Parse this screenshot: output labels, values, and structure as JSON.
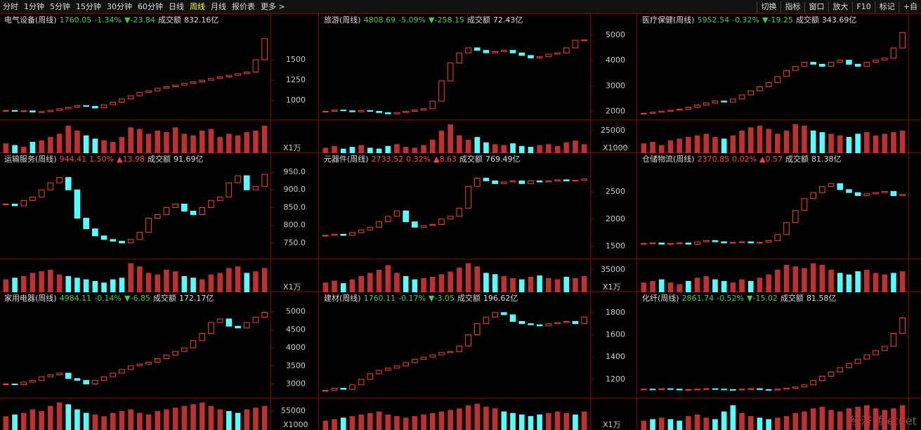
{
  "toolbar": {
    "left": [
      "分时",
      "1分钟",
      "5分钟",
      "15分钟",
      "30分钟",
      "60分钟",
      "日线",
      "周线",
      "月线",
      "报价表",
      "更多 >"
    ],
    "selected": "周线",
    "right": [
      "切换",
      "指标",
      "窗口",
      "放大",
      "F10",
      "标记",
      "+自"
    ]
  },
  "watermark": "经济通 etnet",
  "panels": [
    {
      "title": "电气设备(周线)",
      "price": "1760.05",
      "change": "-1.34%",
      "delta": "▼-23.84",
      "turnover_label": "成交额",
      "turnover": "832.16亿",
      "up": false,
      "ylim": [
        770,
        1870
      ],
      "yticks": [
        1000,
        1250,
        1500
      ],
      "vol_unit": "X1万",
      "vol_lim": [
        0,
        100
      ],
      "vol_ticks": [],
      "closes": [
        880,
        870,
        875,
        860,
        865,
        880,
        900,
        920,
        940,
        930,
        910,
        950,
        980,
        1020,
        1060,
        1100,
        1120,
        1150,
        1170,
        1190,
        1210,
        1230,
        1250,
        1270,
        1290,
        1310,
        1330,
        1350,
        1500,
        1760
      ],
      "volumes": [
        30,
        25,
        20,
        35,
        40,
        50,
        60,
        85,
        70,
        55,
        45,
        40,
        35,
        50,
        80,
        75,
        60,
        70,
        65,
        80,
        60,
        55,
        70,
        75,
        50,
        60,
        55,
        65,
        70,
        85
      ]
    },
    {
      "title": "旅游(周线)",
      "price": "4808.69",
      "change": "-5.09%",
      "delta": "▼-258.15",
      "turnover_label": "成交额",
      "turnover": "72.43亿",
      "up": false,
      "ylim": [
        1680,
        5220
      ],
      "yticks": [
        2000,
        3000,
        4000,
        5000
      ],
      "vol_unit": "X1000",
      "vol_lim": [
        0,
        36000
      ],
      "vol_ticks": [
        25000
      ],
      "closes": [
        2000,
        2050,
        2020,
        1980,
        2030,
        2000,
        1950,
        1900,
        1950,
        2000,
        2050,
        2100,
        2400,
        3200,
        3900,
        4300,
        4500,
        4400,
        4300,
        4350,
        4400,
        4300,
        4200,
        4100,
        4150,
        4250,
        4300,
        4500,
        4800,
        4809
      ],
      "volumes": [
        6000,
        8000,
        5000,
        7000,
        9000,
        6000,
        5000,
        8000,
        10000,
        7000,
        6000,
        9000,
        15000,
        25000,
        32000,
        20000,
        15000,
        18000,
        12000,
        10000,
        9000,
        11000,
        8000,
        7000,
        9000,
        10000,
        8000,
        12000,
        14000,
        10000
      ]
    },
    {
      "title": "医疗保健(周线)",
      "price": "5952.54",
      "change": "-0.32%",
      "delta": "▼-19.25",
      "turnover_label": "成交额",
      "turnover": "343.69亿",
      "up": false,
      "ylim": [
        1700,
        6100
      ],
      "yticks": [],
      "vol_unit": "",
      "vol_lim": [
        0,
        100
      ],
      "vol_ticks": [],
      "closes": [
        2000,
        2050,
        2100,
        2150,
        2200,
        2300,
        2400,
        2500,
        2600,
        2550,
        2700,
        2900,
        3100,
        3300,
        3500,
        3800,
        4100,
        4300,
        4500,
        4400,
        4300,
        4500,
        4600,
        4400,
        4300,
        4500,
        4600,
        4700,
        5200,
        5953
      ],
      "volumes": [
        30,
        35,
        25,
        40,
        45,
        50,
        55,
        60,
        50,
        45,
        55,
        70,
        80,
        85,
        75,
        60,
        70,
        90,
        85,
        70,
        65,
        60,
        55,
        50,
        60,
        65,
        55,
        60,
        65,
        70
      ]
    },
    {
      "title": "运输服务(周线)",
      "price": "944.41",
      "change": "1.50%",
      "delta": "▲13.98",
      "turnover_label": "成交额",
      "turnover": "91.69亿",
      "up": true,
      "ylim": [
        706,
        960
      ],
      "yticks": [
        {
          "value": 750,
          "label": "750.0"
        },
        {
          "value": 800,
          "label": "800.0"
        },
        {
          "value": 850,
          "label": "850.0"
        },
        {
          "value": 900,
          "label": "900.0"
        },
        {
          "value": 950,
          "label": "950.0"
        }
      ],
      "vol_unit": "X1万",
      "vol_lim": [
        0,
        100
      ],
      "vol_ticks": [],
      "closes": [
        860,
        855,
        870,
        880,
        900,
        920,
        935,
        900,
        820,
        790,
        770,
        760,
        755,
        750,
        760,
        780,
        820,
        830,
        850,
        860,
        840,
        830,
        850,
        870,
        880,
        920,
        940,
        900,
        910,
        944
      ],
      "volumes": [
        40,
        45,
        50,
        60,
        65,
        70,
        55,
        50,
        45,
        40,
        35,
        30,
        40,
        45,
        90,
        80,
        60,
        55,
        70,
        65,
        50,
        45,
        40,
        55,
        60,
        75,
        80,
        60,
        65,
        75
      ]
    },
    {
      "title": "元器件(周线)",
      "price": "2733.52",
      "change": "0.32%",
      "delta": "▲8.63",
      "turnover_label": "成交额",
      "turnover": "769.49亿",
      "up": true,
      "ylim": [
        1275,
        2925
      ],
      "yticks": [
        1500,
        2000,
        2500
      ],
      "vol_unit": "X1万",
      "vol_lim": [
        0,
        50000
      ],
      "vol_ticks": [
        35000
      ],
      "closes": [
        1700,
        1720,
        1700,
        1750,
        1800,
        1850,
        1950,
        2050,
        2150,
        1950,
        1850,
        1880,
        1900,
        2000,
        2050,
        2200,
        2600,
        2750,
        2700,
        2650,
        2680,
        2700,
        2650,
        2700,
        2680,
        2700,
        2720,
        2700,
        2710,
        2734
      ],
      "volumes": [
        15000,
        18000,
        14000,
        20000,
        25000,
        30000,
        35000,
        42000,
        30000,
        25000,
        20000,
        22000,
        24000,
        28000,
        32000,
        38000,
        45000,
        40000,
        30000,
        28000,
        25000,
        22000,
        20000,
        24000,
        26000,
        22000,
        20000,
        24000,
        22000,
        25000
      ]
    },
    {
      "title": "仓储物流(周线)",
      "price": "2370.85",
      "change": "0.02%",
      "delta": "▲0.57",
      "turnover_label": "成交额",
      "turnover": "81.38亿",
      "up": true,
      "ylim": [
        1300,
        2800
      ],
      "yticks": [],
      "vol_unit": "",
      "vol_lim": [
        0,
        100
      ],
      "vol_ticks": [],
      "closes": [
        1550,
        1560,
        1540,
        1550,
        1560,
        1540,
        1580,
        1600,
        1580,
        1560,
        1570,
        1580,
        1560,
        1570,
        1600,
        1700,
        1900,
        2100,
        2300,
        2400,
        2500,
        2550,
        2450,
        2400,
        2350,
        2380,
        2400,
        2420,
        2350,
        2371
      ],
      "volumes": [
        30,
        35,
        40,
        30,
        25,
        35,
        45,
        50,
        40,
        35,
        30,
        40,
        35,
        45,
        55,
        70,
        85,
        80,
        75,
        90,
        85,
        70,
        60,
        55,
        65,
        70,
        60,
        55,
        60,
        65
      ]
    },
    {
      "title": "家用电器(周线)",
      "price": "4984.11",
      "change": "-0.14%",
      "delta": "▼-6.85",
      "turnover_label": "成交额",
      "turnover": "172.17亿",
      "up": false,
      "ylim": [
        2620,
        5110
      ],
      "yticks": [
        3000,
        3500,
        4000,
        4500,
        5000
      ],
      "vol_unit": "X1000",
      "vol_lim": [
        0,
        90000
      ],
      "vol_ticks": [
        55000
      ],
      "closes": [
        3000,
        2980,
        3050,
        3100,
        3200,
        3250,
        3300,
        3150,
        3100,
        3000,
        3100,
        3200,
        3300,
        3400,
        3500,
        3550,
        3600,
        3700,
        3800,
        3900,
        4000,
        4200,
        4400,
        4700,
        4800,
        4600,
        4550,
        4700,
        4850,
        4984
      ],
      "volumes": [
        40000,
        45000,
        50000,
        60000,
        55000,
        70000,
        80000,
        75000,
        60000,
        50000,
        45000,
        40000,
        50000,
        55000,
        60000,
        50000,
        45000,
        55000,
        60000,
        65000,
        70000,
        75000,
        80000,
        70000,
        60000,
        55000,
        50000,
        60000,
        65000,
        70000
      ]
    },
    {
      "title": "建材(周线)",
      "price": "1760.11",
      "change": "-0.17%",
      "delta": "▼-3.05",
      "turnover_label": "成交额",
      "turnover": "196.62亿",
      "up": false,
      "ylim": [
        1035,
        1843
      ],
      "yticks": [
        1200,
        1400,
        1600,
        1800
      ],
      "vol_unit": "X1万",
      "vol_lim": [
        0,
        100
      ],
      "vol_ticks": [],
      "closes": [
        1100,
        1120,
        1110,
        1150,
        1200,
        1250,
        1280,
        1300,
        1320,
        1350,
        1380,
        1400,
        1420,
        1440,
        1450,
        1500,
        1600,
        1700,
        1760,
        1800,
        1780,
        1720,
        1700,
        1690,
        1680,
        1700,
        1710,
        1720,
        1700,
        1760
      ],
      "volumes": [
        30,
        35,
        40,
        45,
        50,
        55,
        60,
        50,
        45,
        40,
        45,
        50,
        55,
        60,
        65,
        70,
        80,
        85,
        75,
        70,
        60,
        55,
        50,
        45,
        50,
        55,
        60,
        55,
        50,
        60
      ]
    },
    {
      "title": "化纤(周线)",
      "price": "2861.74",
      "change": "-0.52%",
      "delta": "▼-15.02",
      "turnover_label": "成交额",
      "turnover": "81.58亿",
      "up": false,
      "ylim": [
        1000,
        3100
      ],
      "yticks": [],
      "vol_unit": "",
      "vol_lim": [
        0,
        100
      ],
      "vol_ticks": [],
      "closes": [
        1200,
        1190,
        1210,
        1200,
        1180,
        1190,
        1200,
        1210,
        1200,
        1190,
        1180,
        1200,
        1210,
        1190,
        1180,
        1200,
        1220,
        1250,
        1300,
        1400,
        1500,
        1600,
        1700,
        1800,
        1900,
        2000,
        2100,
        2200,
        2500,
        2862
      ],
      "volumes": [
        30,
        35,
        40,
        35,
        30,
        45,
        50,
        40,
        35,
        60,
        80,
        55,
        45,
        40,
        35,
        40,
        45,
        55,
        60,
        70,
        75,
        65,
        60,
        70,
        75,
        80,
        70,
        65,
        70,
        80
      ]
    }
  ]
}
